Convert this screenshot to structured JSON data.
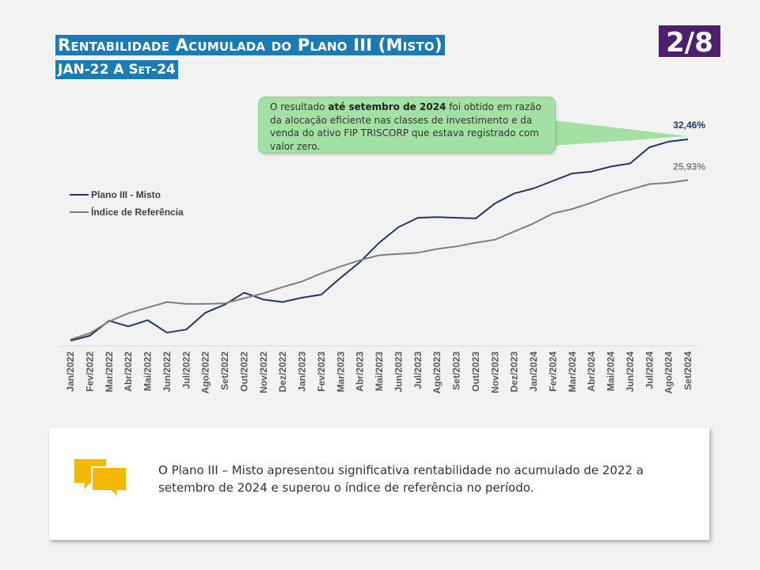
{
  "header": {
    "title": "Rentabilidade Acumulada do Plano III (Misto)",
    "subtitle": "JAN-22 A Set-24",
    "page_indicator": "2/8"
  },
  "callout": {
    "text_before": "O resultado ",
    "text_bold": "até setembro de 2024",
    "text_after": " foi obtido em razão da alocação eficiente nas classes de investimento e da venda do ativo FIP TRISCORP que estava registrado com valor zero."
  },
  "summary": {
    "text": "O Plano III – Misto apresentou significativa rentabilidade no acumulado de 2022 a setembro de 2024 e superou o índice de referência no período.",
    "icon": "chat-bubbles-icon",
    "icon_color": "#f5b800"
  },
  "chart_data": {
    "type": "line",
    "title": "",
    "xlabel": "",
    "ylabel": "",
    "ylim": [
      0,
      35
    ],
    "grid": false,
    "legend_position": "left",
    "x": [
      "Jan/2022",
      "Fev/2022",
      "Mar/2022",
      "Abr/2022",
      "Mai/2022",
      "Jun/2022",
      "Jul/2022",
      "Ago/2022",
      "Set/2022",
      "Out/2022",
      "Nov/2022",
      "Dez/2022",
      "Jan/2023",
      "Fev/2023",
      "Mar/2023",
      "Abr/2023",
      "Mai/2023",
      "Jun/2023",
      "Jul/2023",
      "Ago/2023",
      "Set/2023",
      "Out/2023",
      "Nov/2023",
      "Dez/2023",
      "Jan/2024",
      "Fev/2024",
      "Mar/2024",
      "Abr/2024",
      "Mai/2024",
      "Jun/2024",
      "Jul/2024",
      "Ago/2024",
      "Set/2024"
    ],
    "series": [
      {
        "name": "Plano III - Misto",
        "color": "#1f3864",
        "values": [
          0.2,
          1.0,
          3.4,
          2.5,
          3.5,
          1.5,
          2.0,
          4.7,
          6.0,
          7.9,
          6.8,
          6.4,
          7.1,
          7.6,
          10.3,
          12.8,
          15.9,
          18.4,
          19.9,
          20.0,
          19.9,
          19.8,
          22.2,
          23.8,
          24.6,
          25.8,
          27.0,
          27.3,
          28.1,
          28.6,
          31.2,
          32.1,
          32.46
        ],
        "end_label": "32,46%"
      },
      {
        "name": "Índice de Referência",
        "color": "#7f7f7f",
        "values": [
          0.4,
          1.4,
          3.3,
          4.6,
          5.5,
          6.4,
          6.1,
          6.1,
          6.2,
          7.0,
          7.8,
          8.8,
          9.7,
          11.0,
          12.1,
          13.1,
          13.9,
          14.1,
          14.3,
          14.9,
          15.3,
          15.9,
          16.4,
          17.7,
          19.0,
          20.6,
          21.3,
          22.3,
          23.5,
          24.4,
          25.3,
          25.5,
          25.93
        ],
        "end_label": "25,93%"
      }
    ]
  }
}
